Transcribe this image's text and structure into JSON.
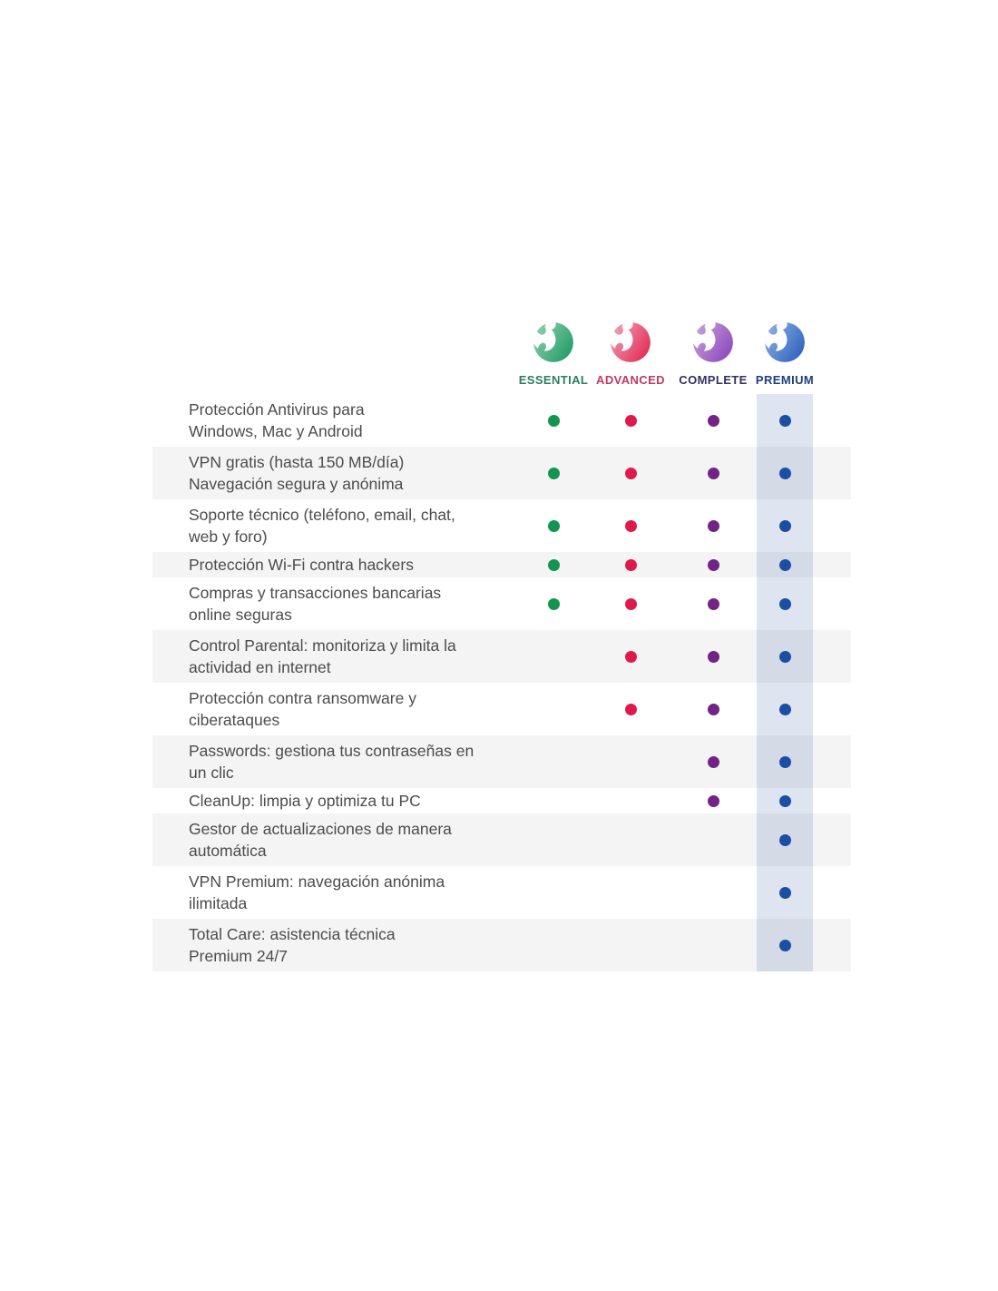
{
  "table": {
    "plans": [
      {
        "name": "ESSENTIAL",
        "label_color": "#2E7D63",
        "dot_color": "#13954F",
        "logo_light": "#8FD0AE",
        "logo_dark": "#1F9A62"
      },
      {
        "name": "ADVANCED",
        "label_color": "#C23A60",
        "dot_color": "#DF1A4A",
        "logo_light": "#F2A0B5",
        "logo_dark": "#E02950"
      },
      {
        "name": "COMPLETE",
        "label_color": "#343061",
        "dot_color": "#722486",
        "logo_light": "#C9A1DB",
        "logo_dark": "#8A46BB"
      },
      {
        "name": "PREMIUM",
        "label_color": "#1F3F7C",
        "dot_color": "#1C4EA4",
        "logo_light": "#8FB0E0",
        "logo_dark": "#2C60BC"
      }
    ],
    "features": [
      {
        "text": "Protección Antivirus para\nWindows, Mac y Android",
        "lines": 2,
        "included": [
          true,
          true,
          true,
          true
        ]
      },
      {
        "text": "VPN gratis (hasta 150 MB/día)\nNavegación segura y anónima",
        "lines": 2,
        "included": [
          true,
          true,
          true,
          true
        ]
      },
      {
        "text": "Soporte técnico (teléfono, email, chat,\nweb y foro)",
        "lines": 2,
        "included": [
          true,
          true,
          true,
          true
        ]
      },
      {
        "text": "Protección Wi-Fi contra hackers",
        "lines": 1,
        "included": [
          true,
          true,
          true,
          true
        ]
      },
      {
        "text": "Compras y transacciones bancarias\nonline seguras",
        "lines": 2,
        "included": [
          true,
          true,
          true,
          true
        ]
      },
      {
        "text": "Control Parental: monitoriza y limita la\nactividad en internet",
        "lines": 2,
        "included": [
          false,
          true,
          true,
          true
        ]
      },
      {
        "text": "Protección contra ransomware y\nciberataques",
        "lines": 2,
        "included": [
          false,
          true,
          true,
          true
        ]
      },
      {
        "text": "Passwords: gestiona tus contraseñas en\nun clic",
        "lines": 2,
        "included": [
          false,
          false,
          true,
          true
        ]
      },
      {
        "text": "CleanUp: limpia y optimiza tu PC",
        "lines": 1,
        "included": [
          false,
          false,
          true,
          true
        ]
      },
      {
        "text": "Gestor de actualizaciones de manera\nautomática",
        "lines": 2,
        "included": [
          false,
          false,
          false,
          true
        ]
      },
      {
        "text": "VPN Premium: navegación anónima\nilimitada",
        "lines": 2,
        "included": [
          false,
          false,
          false,
          true
        ]
      },
      {
        "text": "Total Care: asistencia técnica\nPremium 24/7",
        "lines": 2,
        "included": [
          false,
          false,
          false,
          true
        ]
      }
    ],
    "colors": {
      "premium_band": "#DEE5F0",
      "row_alt": "#F1F2F2",
      "feature_text": "#4C4C4E",
      "background": "#FFFFFF"
    }
  }
}
